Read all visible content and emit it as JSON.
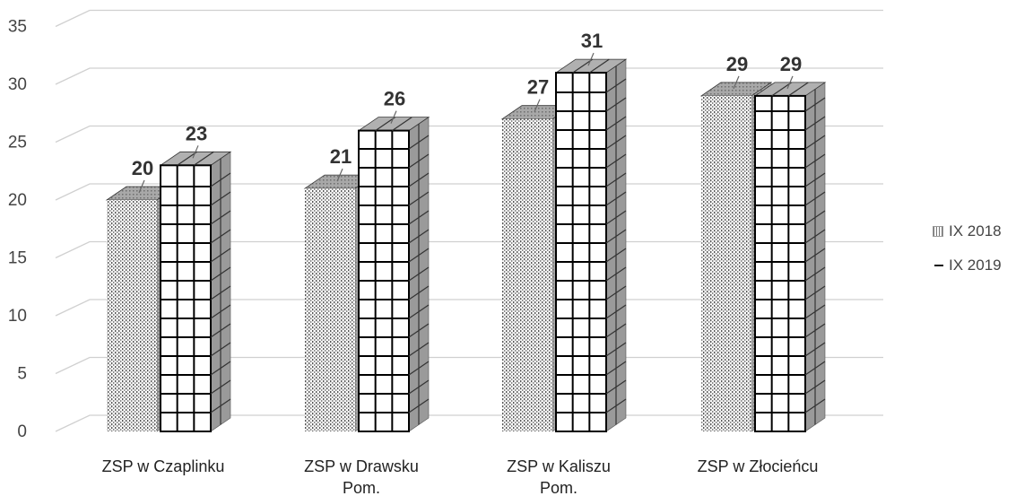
{
  "chart_data": {
    "type": "bar",
    "categories": [
      "ZSP w Czaplinku",
      "ZSP w Drawsku Pom.",
      "ZSP w Kaliszu Pom.",
      "ZSP w Złocieńcu"
    ],
    "series": [
      {
        "name": "IX 2018",
        "values": [
          20,
          21,
          27,
          29
        ],
        "pattern": "dotted"
      },
      {
        "name": "IX 2019",
        "values": [
          23,
          26,
          31,
          29
        ],
        "pattern": "grid"
      }
    ],
    "y_ticks": [
      "0",
      "5",
      "10",
      "15",
      "20",
      "25",
      "30",
      "35"
    ],
    "ylim": [
      0,
      35
    ],
    "grid": true,
    "legend_position": "right",
    "three_d": true,
    "colors": {
      "grid_line": "#d0d0d0",
      "bar_line": "#000000",
      "bar_side": "#9a9a9a",
      "bar_top": "#b0b0b0",
      "label": "#333333"
    }
  }
}
